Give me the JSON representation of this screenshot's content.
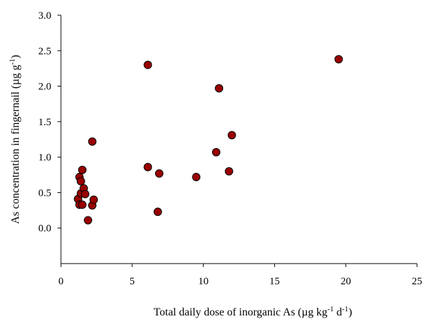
{
  "chart_data": {
    "type": "scatter",
    "title": "",
    "xlabel": {
      "parts": [
        {
          "text": "Total daily dose of inorganic As (µg kg",
          "sup": false
        },
        {
          "text": "-1",
          "sup": true
        },
        {
          "text": " d",
          "sup": false
        },
        {
          "text": "-1",
          "sup": true
        },
        {
          "text": ")",
          "sup": false
        }
      ]
    },
    "ylabel": {
      "parts": [
        {
          "text": "As concentration in fingernail (µg g",
          "sup": false
        },
        {
          "text": "-1",
          "sup": true
        },
        {
          "text": ")",
          "sup": false
        }
      ]
    },
    "xlim": [
      0,
      25
    ],
    "ylim": [
      -0.5,
      3.0
    ],
    "xticks": [
      0,
      5,
      10,
      15,
      20,
      25
    ],
    "xtick_labels": [
      "0",
      "5",
      "10",
      "15",
      "20",
      "25"
    ],
    "yticks": [
      0.0,
      0.5,
      1.0,
      1.5,
      2.0,
      2.5,
      3.0
    ],
    "ytick_labels": [
      "0.0",
      "0.5",
      "1.0",
      "1.5",
      "2.0",
      "2.5",
      "3.0"
    ],
    "grid": false,
    "legend": "none",
    "marker_color": "#990000",
    "marker_edge_color": "#000000",
    "points": [
      {
        "x": 1.2,
        "y": 0.41
      },
      {
        "x": 1.3,
        "y": 0.72
      },
      {
        "x": 1.4,
        "y": 0.66
      },
      {
        "x": 1.3,
        "y": 0.33
      },
      {
        "x": 1.5,
        "y": 0.33
      },
      {
        "x": 1.4,
        "y": 0.49
      },
      {
        "x": 1.5,
        "y": 0.82
      },
      {
        "x": 1.6,
        "y": 0.56
      },
      {
        "x": 1.7,
        "y": 0.48
      },
      {
        "x": 1.9,
        "y": 0.11
      },
      {
        "x": 2.2,
        "y": 1.22
      },
      {
        "x": 2.2,
        "y": 0.32
      },
      {
        "x": 2.3,
        "y": 0.4
      },
      {
        "x": 6.1,
        "y": 2.3
      },
      {
        "x": 6.1,
        "y": 0.86
      },
      {
        "x": 6.8,
        "y": 0.23
      },
      {
        "x": 6.9,
        "y": 0.77
      },
      {
        "x": 9.5,
        "y": 0.72
      },
      {
        "x": 10.9,
        "y": 1.07
      },
      {
        "x": 11.1,
        "y": 1.97
      },
      {
        "x": 11.8,
        "y": 0.8
      },
      {
        "x": 12.0,
        "y": 1.31
      },
      {
        "x": 19.5,
        "y": 2.38
      }
    ]
  }
}
